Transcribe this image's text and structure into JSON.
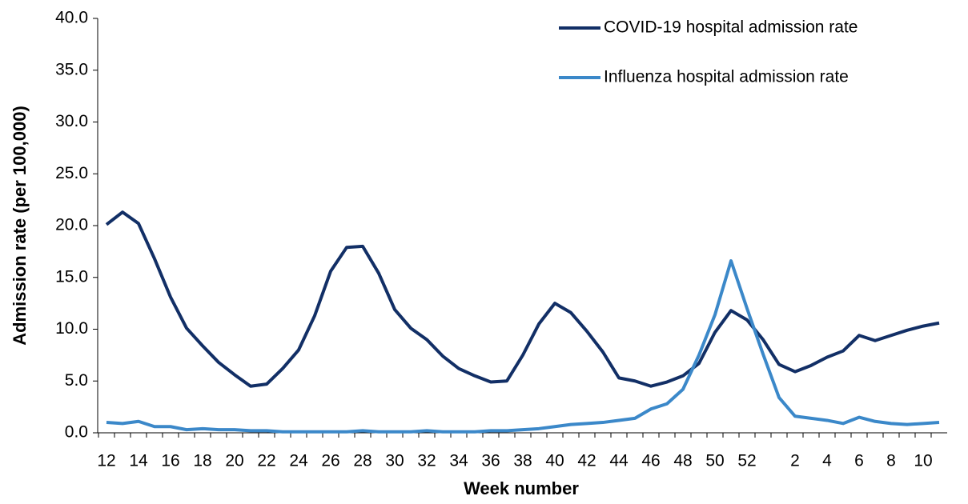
{
  "chart_data": {
    "type": "line",
    "x_label": "Week number",
    "y_label": "Admission rate (per 100,000)",
    "categories": [
      "12",
      null,
      "14",
      null,
      "16",
      null,
      "18",
      null,
      "20",
      null,
      "22",
      null,
      "24",
      null,
      "26",
      null,
      "28",
      null,
      "30",
      null,
      "32",
      null,
      "34",
      null,
      "36",
      null,
      "38",
      null,
      "40",
      null,
      "42",
      null,
      "44",
      null,
      "46",
      null,
      "48",
      null,
      "50",
      null,
      "52",
      null,
      null,
      "2",
      null,
      "4",
      null,
      "6",
      null,
      "8",
      null,
      "10",
      null
    ],
    "series": [
      {
        "name": "COVID-19 hospital admission rate",
        "color": "#122f66",
        "values": [
          20.1,
          21.3,
          20.2,
          16.8,
          13.1,
          10.1,
          8.4,
          6.8,
          5.6,
          4.5,
          4.7,
          6.2,
          8.0,
          11.3,
          15.6,
          17.9,
          18.0,
          15.4,
          11.9,
          10.1,
          9.0,
          7.4,
          6.2,
          5.5,
          4.9,
          5.0,
          7.5,
          10.5,
          12.5,
          11.6,
          9.8,
          7.8,
          5.3,
          5.0,
          4.5,
          4.9,
          5.5,
          6.7,
          9.7,
          11.8,
          10.9,
          9.0,
          6.6,
          5.9,
          6.5,
          7.3,
          7.9,
          9.4,
          8.9,
          9.4,
          9.9,
          10.3,
          10.6
        ]
      },
      {
        "name": "Influenza hospital admission rate",
        "color": "#3b88c9",
        "values": [
          1.0,
          0.9,
          1.1,
          0.6,
          0.6,
          0.3,
          0.4,
          0.3,
          0.3,
          0.2,
          0.2,
          0.1,
          0.1,
          0.1,
          0.1,
          0.1,
          0.2,
          0.1,
          0.1,
          0.1,
          0.2,
          0.1,
          0.1,
          0.1,
          0.2,
          0.2,
          0.3,
          0.4,
          0.6,
          0.8,
          0.9,
          1.0,
          1.2,
          1.4,
          2.3,
          2.8,
          4.2,
          7.5,
          11.4,
          16.6,
          12.0,
          7.6,
          3.4,
          1.6,
          1.4,
          1.2,
          0.9,
          1.5,
          1.1,
          0.9,
          0.8,
          0.9,
          1.0
        ]
      }
    ],
    "ylim": [
      0,
      40
    ],
    "yticks": [
      {
        "value": 0,
        "label": "0.0"
      },
      {
        "value": 5,
        "label": "5.0"
      },
      {
        "value": 10,
        "label": "10.0"
      },
      {
        "value": 15,
        "label": "15.0"
      },
      {
        "value": 20,
        "label": "20.0"
      },
      {
        "value": 25,
        "label": "25.0"
      },
      {
        "value": 30,
        "label": "30.0"
      },
      {
        "value": 35,
        "label": "35.0"
      },
      {
        "value": 40,
        "label": "40.0"
      }
    ],
    "grid": false,
    "legend": "top-right"
  }
}
